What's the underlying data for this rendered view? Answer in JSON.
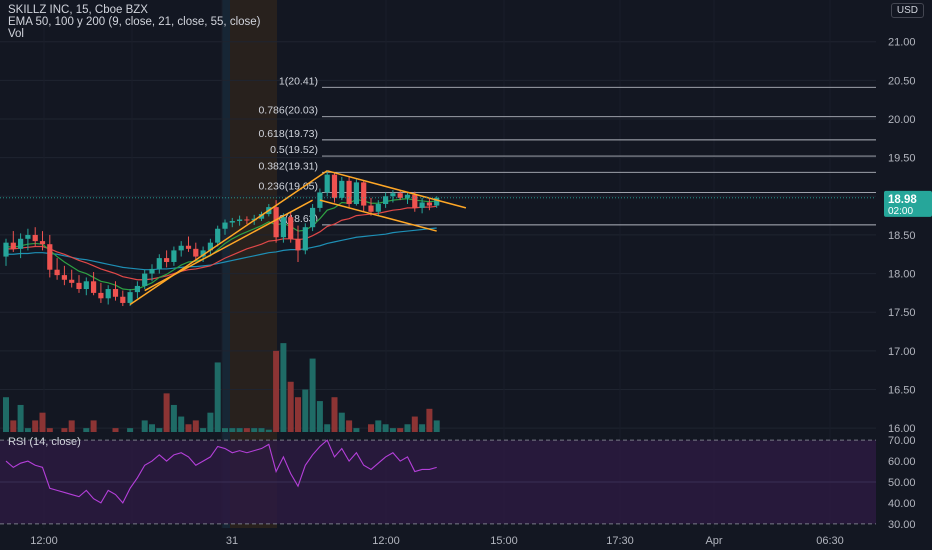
{
  "header": {
    "symbol_line": "SKILLZ INC, 15, Cboe BZX",
    "ema_line": "EMA 50, 100 y 200 (9, close, 21, close, 55, close)",
    "vol_label": "Vol"
  },
  "currency": "USD",
  "rsi_label": "RSI (14, close)",
  "colors": {
    "background": "#131722",
    "up": "#26a69a",
    "down": "#ef5350",
    "ema_fast": "#2ea043",
    "ema_mid": "#e04848",
    "ema_slow": "#1e8fb5",
    "trendline": "#ffa726",
    "rsi_line": "#b43fd9",
    "rsi_band": "#2c1a3f",
    "price_tag": "#26a69a"
  },
  "chart_data": {
    "type": "candlestick",
    "price_axis": {
      "ticks": [
        "21.00",
        "20.50",
        "20.00",
        "19.50",
        "19.00",
        "18.50",
        "18.00",
        "17.50",
        "17.00",
        "16.50",
        "16.00"
      ],
      "range": [
        15.95,
        21.1
      ]
    },
    "rsi_axis": {
      "ticks": [
        "70.00",
        "60.00",
        "50.00",
        "40.00",
        "30.00"
      ],
      "range": [
        28,
        72
      ],
      "bands": [
        30,
        70
      ]
    },
    "time_axis": [
      "12:00",
      "31",
      "12:00",
      "15:00",
      "17:30",
      "Apr",
      "06:30"
    ],
    "last_price": "18.98",
    "countdown": "02:00",
    "fibonacci": [
      {
        "ratio": "1",
        "price": 20.41,
        "label": "1(20.41)"
      },
      {
        "ratio": "0.786",
        "price": 20.03,
        "label": "0.786(20.03)"
      },
      {
        "ratio": "0.618",
        "price": 19.73,
        "label": "0.618(19.73)"
      },
      {
        "ratio": "0.5",
        "price": 19.52,
        "label": "0.5(19.52)"
      },
      {
        "ratio": "0.382",
        "price": 19.31,
        "label": "0.382(19.31)"
      },
      {
        "ratio": "0.236",
        "price": 19.05,
        "label": "0.236(19.05)"
      },
      {
        "ratio": "0",
        "price": 18.63,
        "label": "0(18.63)"
      }
    ],
    "candles": [
      {
        "o": 18.22,
        "h": 18.45,
        "l": 18.1,
        "c": 18.4
      },
      {
        "o": 18.4,
        "h": 18.55,
        "l": 18.28,
        "c": 18.32
      },
      {
        "o": 18.32,
        "h": 18.52,
        "l": 18.2,
        "c": 18.45
      },
      {
        "o": 18.45,
        "h": 18.58,
        "l": 18.3,
        "c": 18.5
      },
      {
        "o": 18.5,
        "h": 18.6,
        "l": 18.35,
        "c": 18.42
      },
      {
        "o": 18.42,
        "h": 18.55,
        "l": 18.3,
        "c": 18.38
      },
      {
        "o": 18.38,
        "h": 18.5,
        "l": 17.95,
        "c": 18.05
      },
      {
        "o": 18.05,
        "h": 18.2,
        "l": 17.92,
        "c": 17.98
      },
      {
        "o": 17.98,
        "h": 18.1,
        "l": 17.85,
        "c": 17.92
      },
      {
        "o": 17.92,
        "h": 18.05,
        "l": 17.82,
        "c": 17.88
      },
      {
        "o": 17.88,
        "h": 17.98,
        "l": 17.75,
        "c": 17.8
      },
      {
        "o": 17.8,
        "h": 17.95,
        "l": 17.72,
        "c": 17.9
      },
      {
        "o": 17.9,
        "h": 18.02,
        "l": 17.72,
        "c": 17.75
      },
      {
        "o": 17.75,
        "h": 17.88,
        "l": 17.62,
        "c": 17.68
      },
      {
        "o": 17.68,
        "h": 17.85,
        "l": 17.6,
        "c": 17.8
      },
      {
        "o": 17.8,
        "h": 17.9,
        "l": 17.65,
        "c": 17.7
      },
      {
        "o": 17.7,
        "h": 17.78,
        "l": 17.58,
        "c": 17.62
      },
      {
        "o": 17.62,
        "h": 17.8,
        "l": 17.58,
        "c": 17.76
      },
      {
        "o": 17.76,
        "h": 17.9,
        "l": 17.68,
        "c": 17.84
      },
      {
        "o": 17.84,
        "h": 18.05,
        "l": 17.8,
        "c": 18.0
      },
      {
        "o": 18.0,
        "h": 18.12,
        "l": 17.9,
        "c": 18.06
      },
      {
        "o": 18.06,
        "h": 18.25,
        "l": 18.0,
        "c": 18.2
      },
      {
        "o": 18.2,
        "h": 18.3,
        "l": 18.08,
        "c": 18.15
      },
      {
        "o": 18.15,
        "h": 18.35,
        "l": 18.1,
        "c": 18.3
      },
      {
        "o": 18.3,
        "h": 18.42,
        "l": 18.22,
        "c": 18.36
      },
      {
        "o": 18.36,
        "h": 18.48,
        "l": 18.28,
        "c": 18.32
      },
      {
        "o": 18.32,
        "h": 18.4,
        "l": 18.18,
        "c": 18.22
      },
      {
        "o": 18.22,
        "h": 18.35,
        "l": 18.15,
        "c": 18.3
      },
      {
        "o": 18.3,
        "h": 18.45,
        "l": 18.25,
        "c": 18.4
      },
      {
        "o": 18.4,
        "h": 18.62,
        "l": 18.35,
        "c": 18.58
      },
      {
        "o": 18.58,
        "h": 18.7,
        "l": 18.5,
        "c": 18.66
      },
      {
        "o": 18.66,
        "h": 18.72,
        "l": 18.6,
        "c": 18.68
      },
      {
        "o": 18.68,
        "h": 18.75,
        "l": 18.62,
        "c": 18.7
      },
      {
        "o": 18.7,
        "h": 18.74,
        "l": 18.64,
        "c": 18.69
      },
      {
        "o": 18.69,
        "h": 18.76,
        "l": 18.63,
        "c": 18.71
      },
      {
        "o": 18.71,
        "h": 18.8,
        "l": 18.68,
        "c": 18.77
      },
      {
        "o": 18.77,
        "h": 18.9,
        "l": 18.74,
        "c": 18.86
      },
      {
        "o": 18.86,
        "h": 18.95,
        "l": 18.4,
        "c": 18.47
      },
      {
        "o": 18.47,
        "h": 18.78,
        "l": 18.4,
        "c": 18.73
      },
      {
        "o": 18.73,
        "h": 18.8,
        "l": 18.4,
        "c": 18.45
      },
      {
        "o": 18.45,
        "h": 18.62,
        "l": 18.15,
        "c": 18.3
      },
      {
        "o": 18.3,
        "h": 18.65,
        "l": 18.25,
        "c": 18.6
      },
      {
        "o": 18.6,
        "h": 18.9,
        "l": 18.55,
        "c": 18.85
      },
      {
        "o": 18.85,
        "h": 19.1,
        "l": 18.8,
        "c": 19.05
      },
      {
        "o": 19.05,
        "h": 19.33,
        "l": 19.0,
        "c": 19.28
      },
      {
        "o": 19.28,
        "h": 19.31,
        "l": 18.92,
        "c": 18.98
      },
      {
        "o": 18.98,
        "h": 19.25,
        "l": 18.95,
        "c": 19.2
      },
      {
        "o": 19.2,
        "h": 19.25,
        "l": 18.85,
        "c": 18.9
      },
      {
        "o": 18.9,
        "h": 19.22,
        "l": 18.88,
        "c": 19.18
      },
      {
        "o": 19.18,
        "h": 19.2,
        "l": 18.8,
        "c": 18.88
      },
      {
        "o": 18.88,
        "h": 18.98,
        "l": 18.75,
        "c": 18.8
      },
      {
        "o": 18.8,
        "h": 18.95,
        "l": 18.75,
        "c": 18.9
      },
      {
        "o": 18.9,
        "h": 19.05,
        "l": 18.85,
        "c": 19.0
      },
      {
        "o": 19.0,
        "h": 19.08,
        "l": 18.92,
        "c": 19.04
      },
      {
        "o": 19.04,
        "h": 19.08,
        "l": 18.95,
        "c": 18.98
      },
      {
        "o": 18.98,
        "h": 19.05,
        "l": 18.9,
        "c": 19.02
      },
      {
        "o": 19.02,
        "h": 19.06,
        "l": 18.8,
        "c": 18.85
      },
      {
        "o": 18.85,
        "h": 18.98,
        "l": 18.78,
        "c": 18.92
      },
      {
        "o": 18.92,
        "h": 18.98,
        "l": 18.82,
        "c": 18.88
      },
      {
        "o": 18.88,
        "h": 19.0,
        "l": 18.85,
        "c": 18.98
      }
    ],
    "volume_max": 17.1,
    "volumes": [
      16.4,
      16.1,
      16.3,
      16.0,
      16.1,
      16.2,
      16.0,
      15.9,
      16.0,
      16.1,
      15.9,
      16.0,
      16.1,
      15.9,
      15.95,
      16.0,
      15.9,
      16.0,
      15.95,
      16.1,
      16.05,
      16.0,
      16.45,
      16.3,
      16.15,
      16.05,
      16.1,
      16.0,
      16.2,
      16.85,
      16.0,
      16.0,
      16.0,
      16.0,
      16.0,
      16.0,
      15.98,
      17.0,
      17.1,
      16.6,
      16.4,
      16.5,
      16.9,
      16.35,
      16.05,
      16.4,
      16.2,
      16.1,
      16.0,
      15.95,
      16.05,
      16.1,
      16.05,
      16.0,
      16.0,
      16.05,
      16.15,
      16.05,
      16.25,
      16.1
    ],
    "ema_fast": [
      18.35,
      18.34,
      18.36,
      18.38,
      18.39,
      18.38,
      18.3,
      18.22,
      18.15,
      18.09,
      18.03,
      18.0,
      17.95,
      17.9,
      17.88,
      17.85,
      17.8,
      17.79,
      17.8,
      17.84,
      17.88,
      17.95,
      17.99,
      18.05,
      18.11,
      18.15,
      18.16,
      18.19,
      18.23,
      18.31,
      18.39,
      18.45,
      18.5,
      18.54,
      18.58,
      18.62,
      18.67,
      18.63,
      18.65,
      18.61,
      18.55,
      18.56,
      18.62,
      18.71,
      18.82,
      18.85,
      18.92,
      18.91,
      18.96,
      18.94,
      18.91,
      18.91,
      18.93,
      18.95,
      18.96,
      18.97,
      18.95,
      18.94,
      18.93,
      18.94
    ],
    "ema_mid": [
      18.32,
      18.32,
      18.33,
      18.34,
      18.35,
      18.35,
      18.32,
      18.28,
      18.25,
      18.21,
      18.17,
      18.14,
      18.1,
      18.06,
      18.03,
      18.0,
      17.96,
      17.94,
      17.92,
      17.92,
      17.93,
      17.95,
      17.97,
      18.0,
      18.03,
      18.05,
      18.06,
      18.08,
      18.1,
      18.15,
      18.2,
      18.24,
      18.28,
      18.32,
      18.35,
      18.38,
      18.42,
      18.43,
      18.45,
      18.45,
      18.44,
      18.45,
      18.49,
      18.54,
      18.61,
      18.64,
      18.69,
      18.71,
      18.75,
      18.76,
      18.77,
      18.78,
      18.8,
      18.82,
      18.83,
      18.85,
      18.85,
      18.86,
      18.86,
      18.87
    ],
    "ema_slow": [
      18.25,
      18.25,
      18.26,
      18.26,
      18.27,
      18.27,
      18.26,
      18.25,
      18.23,
      18.21,
      18.19,
      18.18,
      18.16,
      18.14,
      18.12,
      18.1,
      18.08,
      18.07,
      18.06,
      18.05,
      18.05,
      18.06,
      18.06,
      18.07,
      18.08,
      18.09,
      18.09,
      18.1,
      18.11,
      18.13,
      18.15,
      18.17,
      18.19,
      18.21,
      18.23,
      18.25,
      18.27,
      18.28,
      18.3,
      18.31,
      18.31,
      18.32,
      18.34,
      18.36,
      18.39,
      18.41,
      18.43,
      18.45,
      18.47,
      18.48,
      18.49,
      18.5,
      18.51,
      18.53,
      18.54,
      18.55,
      18.56,
      18.57,
      18.58,
      18.59
    ],
    "rsi": [
      60,
      57,
      59,
      60,
      58,
      57,
      47,
      46,
      45,
      44,
      43,
      46,
      42,
      40,
      46,
      44,
      40,
      47,
      52,
      58,
      60,
      63,
      60,
      63,
      64,
      62,
      58,
      60,
      62,
      67,
      66,
      64,
      65,
      64,
      65,
      66,
      68,
      55,
      62,
      54,
      48,
      58,
      63,
      67,
      70,
      62,
      66,
      60,
      64,
      58,
      56,
      59,
      62,
      64,
      60,
      62,
      55,
      56,
      56,
      57
    ]
  }
}
